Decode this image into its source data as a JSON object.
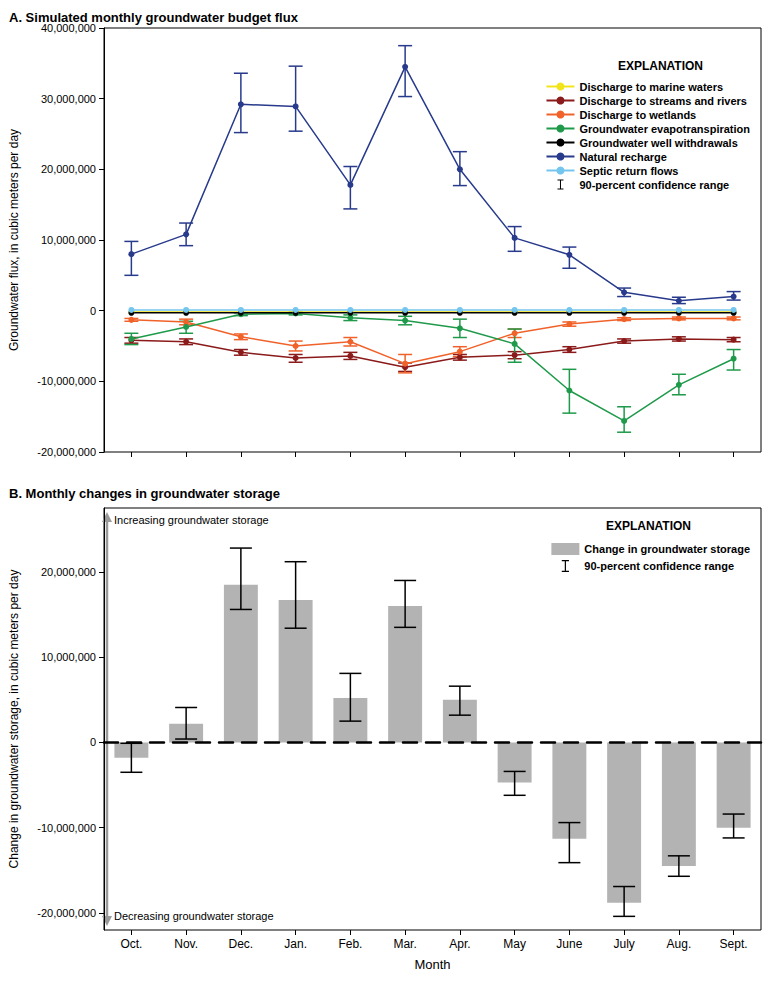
{
  "chart_data": [
    {
      "type": "line",
      "title": "A. Simulated monthly groundwater budget flux",
      "y_label": "Groundwater flux, in cubic meters per day",
      "categories": [
        "Oct.",
        "Nov.",
        "Dec.",
        "Jan.",
        "Feb.",
        "Mar.",
        "Apr.",
        "May",
        "June",
        "July",
        "Aug.",
        "Sept."
      ],
      "ylim": [
        -20000000,
        40000000
      ],
      "yticks": [
        {
          "value": -20000000,
          "label": "-20,000,000"
        },
        {
          "value": -10000000,
          "label": "-10,000,000"
        },
        0,
        {
          "value": 10000000,
          "label": "10,000,000"
        },
        {
          "value": 20000000,
          "label": "20,000,000"
        },
        {
          "value": 30000000,
          "label": "30,000,000"
        },
        {
          "value": 40000000,
          "label": "40,000,000"
        }
      ],
      "grid": false,
      "tick_labels": "y",
      "legend": "upper right",
      "legend_title": "EXPLANATION",
      "error_bar_label": "90-percent confidence range",
      "series": [
        {
          "name": "Discharge to marine waters",
          "color": "#f2e41c",
          "marker": "circle",
          "values": [
            -200000,
            -200000,
            -200000,
            -200000,
            -200000,
            -200000,
            -200000,
            -200000,
            -200000,
            -200000,
            -200000,
            -200000
          ]
        },
        {
          "name": "Discharge to streams and rivers",
          "color": "#8b1a1a",
          "marker": "circle",
          "values": [
            -4200000,
            -4400000,
            -5900000,
            -6700000,
            -6400000,
            -8000000,
            -6600000,
            -6300000,
            -5500000,
            -4300000,
            -4000000,
            -4100000
          ],
          "error_low": [
            -4600000,
            -4800000,
            -6300000,
            -7300000,
            -6900000,
            -8600000,
            -7000000,
            -6800000,
            -5900000,
            -4600000,
            -4300000,
            -4400000
          ],
          "error_high": [
            -3800000,
            -4000000,
            -5500000,
            -6200000,
            -5900000,
            -7400000,
            -6200000,
            -5800000,
            -5100000,
            -4000000,
            -3700000,
            -3800000
          ]
        },
        {
          "name": "Discharge to wetlands",
          "color": "#f0622a",
          "marker": "circle",
          "values": [
            -1300000,
            -1600000,
            -3700000,
            -5000000,
            -4400000,
            -7500000,
            -5800000,
            -3200000,
            -1900000,
            -1200000,
            -1100000,
            -1100000
          ],
          "error_low": [
            -1500000,
            -2000000,
            -4100000,
            -5700000,
            -5000000,
            -8800000,
            -6500000,
            -3800000,
            -2200000,
            -1400000,
            -1300000,
            -1300000
          ],
          "error_high": [
            -1100000,
            -1200000,
            -3300000,
            -4300000,
            -3800000,
            -6200000,
            -5100000,
            -2600000,
            -1600000,
            -1000000,
            -900000,
            -900000
          ]
        },
        {
          "name": "Groundwater evapotranspiration",
          "color": "#1f9a4a",
          "marker": "circle",
          "values": [
            -4000000,
            -2300000,
            -500000,
            -400000,
            -1000000,
            -1400000,
            -2500000,
            -4700000,
            -11300000,
            -15600000,
            -10500000,
            -6800000
          ],
          "error_low": [
            -4800000,
            -3200000,
            -700000,
            -600000,
            -1400000,
            -2000000,
            -3800000,
            -7300000,
            -14500000,
            -17200000,
            -11900000,
            -8400000
          ],
          "error_high": [
            -3200000,
            -1500000,
            -300000,
            -200000,
            -600000,
            -800000,
            -1200000,
            -2600000,
            -8300000,
            -13600000,
            -9000000,
            -5500000
          ]
        },
        {
          "name": "Groundwater well withdrawals",
          "color": "#000000",
          "marker": "circle",
          "values": [
            -300000,
            -300000,
            -300000,
            -300000,
            -300000,
            -300000,
            -300000,
            -300000,
            -300000,
            -300000,
            -300000,
            -300000
          ]
        },
        {
          "name": "Natural recharge",
          "color": "#283a8c",
          "marker": "circle",
          "values": [
            8000000,
            10800000,
            29200000,
            28900000,
            17800000,
            34500000,
            20000000,
            10300000,
            7900000,
            2600000,
            1400000,
            2000000
          ],
          "error_low": [
            5000000,
            9200000,
            25200000,
            25400000,
            14400000,
            30300000,
            17700000,
            8400000,
            6000000,
            2000000,
            1000000,
            1500000
          ],
          "error_high": [
            9800000,
            12400000,
            33600000,
            34600000,
            20400000,
            37500000,
            22500000,
            11900000,
            9000000,
            3200000,
            1900000,
            2700000
          ]
        },
        {
          "name": "Septic return flows",
          "color": "#74c6ee",
          "marker": "circle",
          "values": [
            100000,
            100000,
            100000,
            100000,
            100000,
            100000,
            100000,
            100000,
            100000,
            100000,
            100000,
            100000
          ]
        }
      ]
    },
    {
      "type": "bar",
      "title": "B. Monthly changes in groundwater storage",
      "x_label": "Month",
      "y_label": "Change in groundwater storage, in cubic meters per day",
      "annotations": [
        "Increasing groundwater storage",
        "Decreasing groundwater storage"
      ],
      "categories": [
        "Oct.",
        "Nov.",
        "Dec.",
        "Jan.",
        "Feb.",
        "Mar.",
        "Apr.",
        "May",
        "June",
        "July",
        "Aug.",
        "Sept."
      ],
      "ylim": [
        -22000000,
        27500000
      ],
      "yticks": [
        {
          "value": -20000000,
          "label": "-20,000,000"
        },
        {
          "value": -10000000,
          "label": "-10,000,000"
        },
        0,
        {
          "value": 10000000,
          "label": "10,000,000"
        },
        {
          "value": 20000000,
          "label": "20,000,000"
        }
      ],
      "grid": false,
      "legend": "upper right",
      "legend_title": "EXPLANATION",
      "error_bar_label": "90-percent confidence range",
      "series": [
        {
          "name": "Change in groundwater storage",
          "color": "#b3b3b3",
          "values": [
            -1800000,
            2200000,
            18500000,
            16700000,
            5200000,
            16000000,
            5000000,
            -4700000,
            -11300000,
            -18800000,
            -14500000,
            -10000000
          ],
          "error_low": [
            -3500000,
            400000,
            15600000,
            13400000,
            2500000,
            13500000,
            3200000,
            -6200000,
            -14100000,
            -20400000,
            -15700000,
            -11200000
          ],
          "error_high": [
            -100000,
            4100000,
            22800000,
            21200000,
            8100000,
            19000000,
            6600000,
            -3400000,
            -9400000,
            -16900000,
            -13300000,
            -8400000
          ]
        }
      ]
    }
  ]
}
